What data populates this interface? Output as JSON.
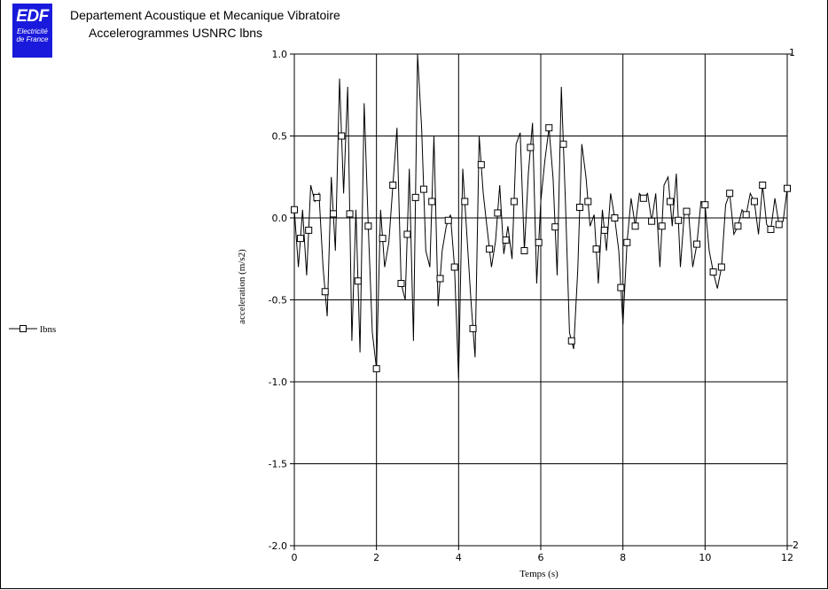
{
  "header": {
    "logo_text": "EDF",
    "logo_sub1": "Electricité",
    "logo_sub2": "de France",
    "title": "Departement Acoustique et Mecanique Vibratoire",
    "subtitle": "Accelerogrammes USNRC lbns"
  },
  "colors": {
    "logo_bg": "#1a1adc",
    "line": "#000000",
    "grid": "#000000"
  },
  "chart_data": {
    "type": "line",
    "xlabel": "Temps (s)",
    "ylabel": "acceleration (m/s2)",
    "xlim": [
      0,
      12
    ],
    "ylim": [
      -2.0,
      1.0
    ],
    "x_ticks": [
      "0",
      "2",
      "4",
      "6",
      "8",
      "10",
      "12"
    ],
    "y_ticks": [
      "1.0",
      "0.5",
      "0.0",
      "-0.5",
      "-1.0",
      "-1.5",
      "-2.0"
    ],
    "right_axis_ticks": [
      "1",
      "-2"
    ],
    "grid": true,
    "legend_position": "left",
    "series": [
      {
        "name": "lbns",
        "marker": "square",
        "x": [
          0.0,
          0.1,
          0.2,
          0.3,
          0.4,
          0.5,
          0.6,
          0.7,
          0.8,
          0.9,
          1.0,
          1.1,
          1.2,
          1.3,
          1.4,
          1.5,
          1.6,
          1.7,
          1.8,
          1.9,
          2.0,
          2.1,
          2.2,
          2.3,
          2.4,
          2.5,
          2.6,
          2.7,
          2.8,
          2.9,
          3.0,
          3.1,
          3.2,
          3.3,
          3.4,
          3.5,
          3.6,
          3.7,
          3.8,
          3.9,
          4.0,
          4.1,
          4.2,
          4.3,
          4.4,
          4.5,
          4.6,
          4.7,
          4.8,
          4.9,
          5.0,
          5.1,
          5.2,
          5.3,
          5.4,
          5.5,
          5.6,
          5.7,
          5.8,
          5.9,
          6.0,
          6.1,
          6.2,
          6.3,
          6.4,
          6.5,
          6.6,
          6.7,
          6.8,
          6.9,
          7.0,
          7.1,
          7.2,
          7.3,
          7.4,
          7.5,
          7.6,
          7.7,
          7.8,
          7.9,
          8.0,
          8.1,
          8.2,
          8.3,
          8.4,
          8.5,
          8.6,
          8.7,
          8.8,
          8.9,
          9.0,
          9.1,
          9.2,
          9.3,
          9.4,
          9.5,
          9.6,
          9.7,
          9.8,
          9.9,
          10.0,
          10.1,
          10.2,
          10.3,
          10.4,
          10.5,
          10.6,
          10.7,
          10.8,
          10.9,
          11.0,
          11.1,
          11.2,
          11.3,
          11.4,
          11.5,
          11.6,
          11.7,
          11.8,
          11.9,
          12.0
        ],
        "y": [
          0.05,
          -0.3,
          0.05,
          -0.35,
          0.2,
          0.1,
          0.15,
          -0.3,
          -0.6,
          0.25,
          -0.2,
          0.85,
          0.15,
          0.8,
          -0.75,
          0.05,
          -0.82,
          0.7,
          -0.05,
          -0.7,
          -0.92,
          0.05,
          -0.3,
          -0.15,
          0.2,
          0.55,
          -0.4,
          -0.5,
          0.3,
          -0.75,
          1.0,
          0.55,
          -0.2,
          -0.3,
          0.5,
          -0.54,
          -0.2,
          -0.05,
          0.02,
          -0.3,
          -0.98,
          0.3,
          -0.1,
          -0.5,
          -0.85,
          0.5,
          0.15,
          -0.08,
          -0.3,
          -0.14,
          0.2,
          -0.22,
          -0.05,
          -0.25,
          0.45,
          0.52,
          -0.2,
          0.28,
          0.58,
          -0.4,
          0.1,
          0.35,
          0.55,
          0.24,
          -0.35,
          0.8,
          0.1,
          -0.7,
          -0.8,
          -0.32,
          0.45,
          0.25,
          -0.05,
          0.02,
          -0.4,
          0.05,
          -0.2,
          0.15,
          0.0,
          -0.2,
          -0.65,
          -0.15,
          0.12,
          -0.05,
          0.15,
          0.12,
          0.15,
          -0.02,
          0.15,
          -0.3,
          0.2,
          0.25,
          -0.05,
          0.27,
          -0.3,
          0.05,
          0.03,
          -0.3,
          -0.16,
          0.1,
          0.08,
          -0.2,
          -0.33,
          -0.43,
          -0.3,
          0.08,
          0.15,
          -0.1,
          -0.05,
          0.05,
          0.02,
          0.15,
          0.1,
          -0.1,
          0.2,
          -0.04,
          -0.07,
          0.12,
          -0.04,
          -0.02,
          0.18
        ],
        "marker_x": [
          0.0,
          0.15,
          0.35,
          0.55,
          0.75,
          0.95,
          1.15,
          1.35,
          1.55,
          1.8,
          2.0,
          2.15,
          2.4,
          2.6,
          2.75,
          2.95,
          3.15,
          3.35,
          3.55,
          3.75,
          3.9,
          4.15,
          4.35,
          4.55,
          4.75,
          4.95,
          5.15,
          5.35,
          5.6,
          5.75,
          5.95,
          6.2,
          6.35,
          6.55,
          6.75,
          6.95,
          7.15,
          7.35,
          7.55,
          7.8,
          7.95,
          8.1,
          8.3,
          8.5,
          8.7,
          8.95,
          9.15,
          9.35,
          9.55,
          9.8,
          10.0,
          10.2,
          10.4,
          10.6,
          10.8,
          11.0,
          11.2,
          11.4,
          11.6,
          11.8,
          12.0
        ]
      }
    ]
  }
}
